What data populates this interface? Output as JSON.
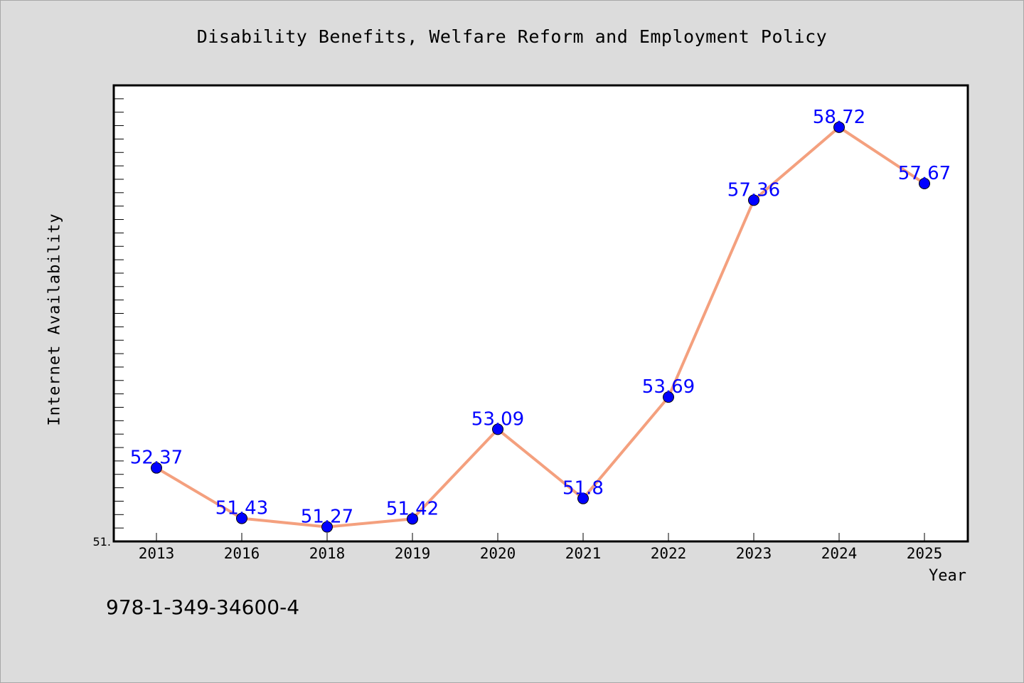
{
  "chart_data": {
    "type": "line",
    "title": "Disability Benefits, Welfare Reform and Employment Policy",
    "xlabel": "Year",
    "ylabel": "Internet Availability",
    "categories": [
      "2013",
      "2016",
      "2018",
      "2019",
      "2020",
      "2021",
      "2022",
      "2023",
      "2024",
      "2025"
    ],
    "series": [
      {
        "values": [
          52.37,
          51.43,
          51.27,
          51.42,
          53.09,
          51.8,
          53.69,
          57.36,
          58.72,
          57.67
        ],
        "labels": [
          "52.37",
          "51.43",
          "51.27",
          "51.42",
          "53.09",
          "51.8",
          "53.69",
          "57.36",
          "58.72",
          "57.67"
        ]
      }
    ],
    "ylim": [
      51,
      59.5
    ],
    "y_tick_label": "51.",
    "grid": false,
    "colors": {
      "line": "#f4a07e",
      "marker": "#0000ff",
      "label": "#0000ff"
    }
  },
  "footer": {
    "isbn": "978-1-349-34600-4"
  }
}
